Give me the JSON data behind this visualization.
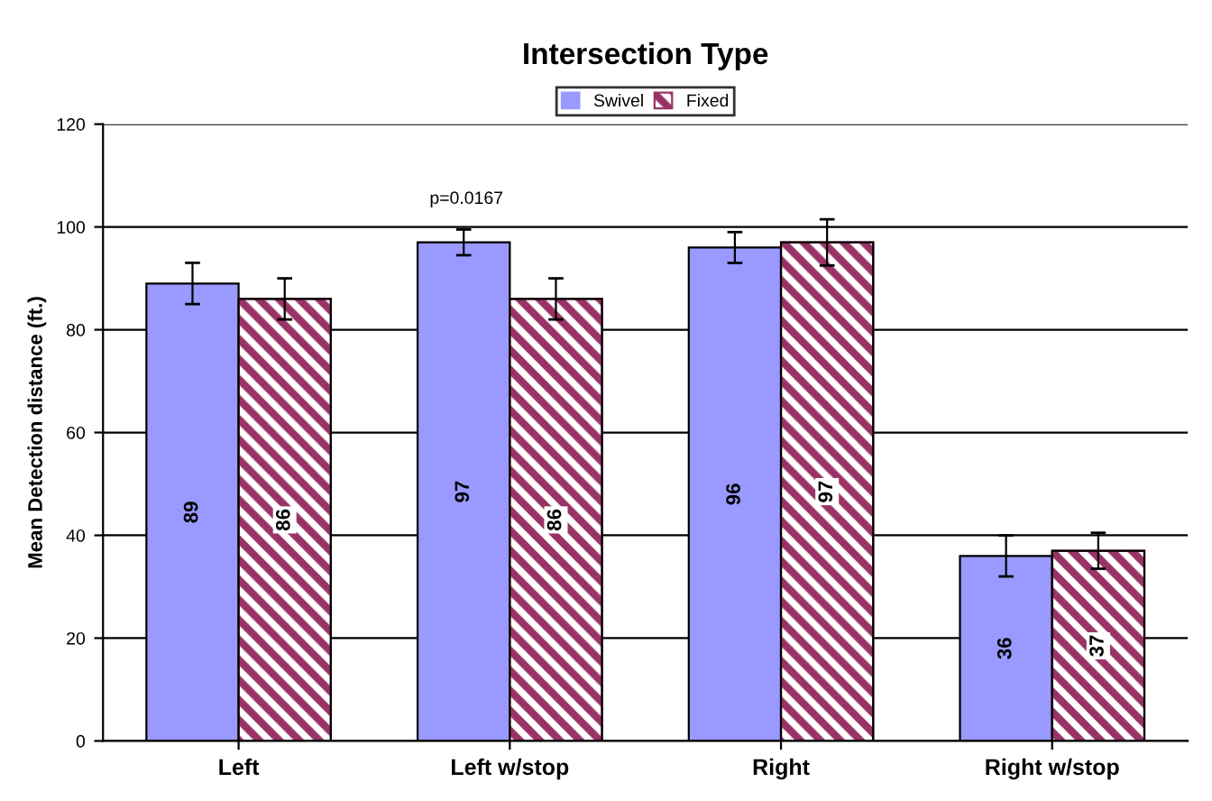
{
  "chart_data": {
    "type": "bar",
    "title": "Intersection Type",
    "ylabel": "Mean Detection distance (ft.)",
    "categories": [
      "Left",
      "Left w/stop",
      "Right",
      "Right w/stop"
    ],
    "series": [
      {
        "name": "Swivel",
        "color": "#9999ff",
        "values": [
          89,
          97,
          96,
          36
        ],
        "errors": [
          4,
          2.5,
          3,
          4
        ]
      },
      {
        "name": "Fixed",
        "color": "#993366",
        "values": [
          86,
          86,
          97,
          37
        ],
        "errors": [
          4,
          4,
          4.5,
          3.5
        ]
      }
    ],
    "ylim": [
      0,
      120
    ],
    "yticks": [
      0,
      20,
      40,
      60,
      80,
      100,
      120
    ],
    "grid": "y",
    "legend": "top",
    "data_labels": true,
    "annotations": [
      "p=0.0167"
    ]
  }
}
